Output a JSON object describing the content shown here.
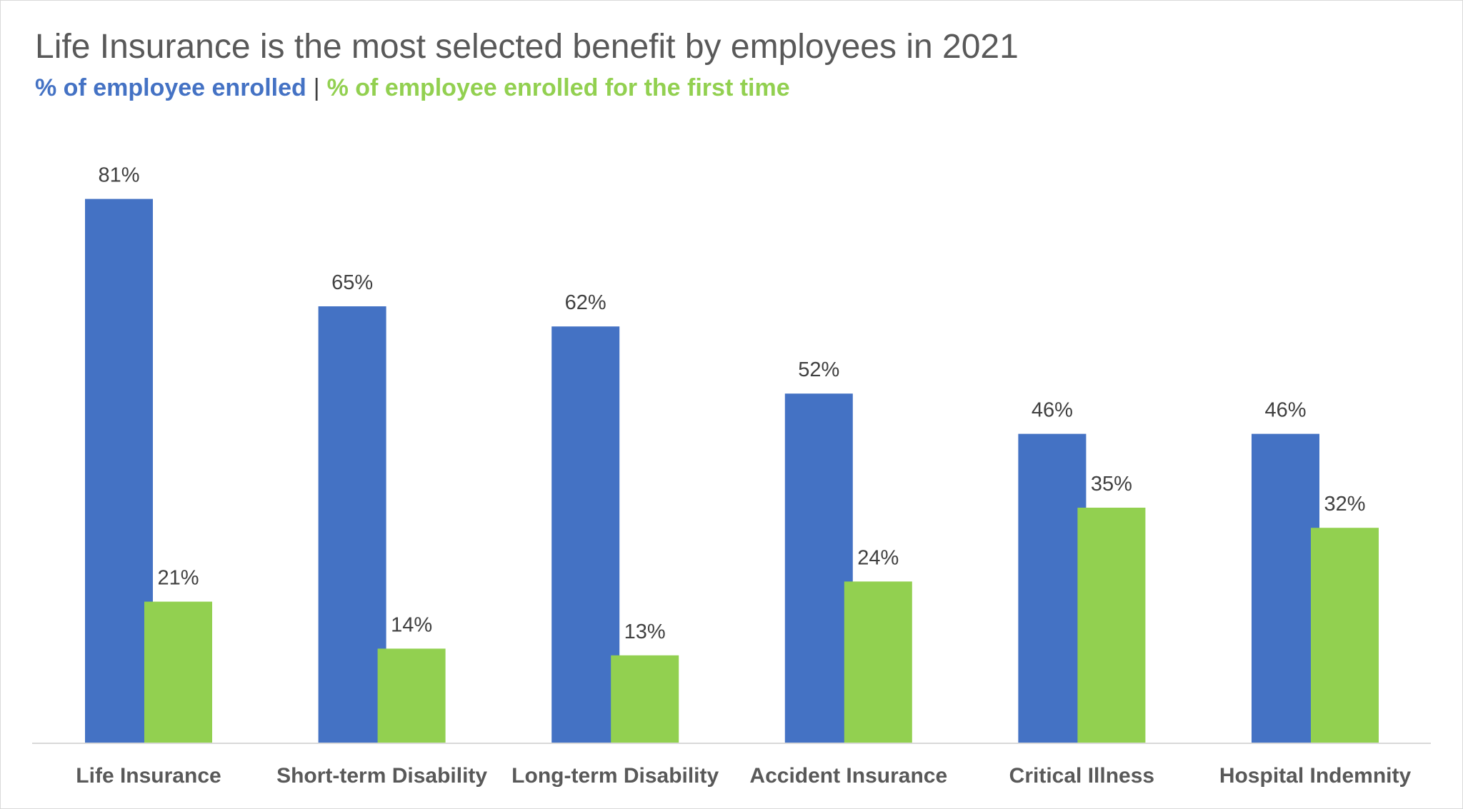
{
  "chart_data": {
    "type": "bar",
    "title": "Life Insurance is the most selected benefit by employees in 2021",
    "subtitle_parts": [
      "% of employee enrolled",
      "|",
      "% of employee enrolled for the first time"
    ],
    "categories": [
      "Life Insurance",
      "Short-term Disability",
      "Long-term Disability",
      "Accident Insurance",
      "Critical Illness",
      "Hospital Indemnity"
    ],
    "series": [
      {
        "name": "% of employee enrolled",
        "color": "#4472C4",
        "values": [
          81,
          65,
          62,
          52,
          46,
          46
        ],
        "labels": [
          "81%",
          "65%",
          "62%",
          "52%",
          "46%",
          "46%"
        ]
      },
      {
        "name": "% of employee enrolled for the first time",
        "color": "#92D050",
        "values": [
          21,
          14,
          13,
          24,
          35,
          32
        ],
        "labels": [
          "21%",
          "14%",
          "13%",
          "24%",
          "35%",
          "32%"
        ]
      }
    ],
    "ylim": [
      0,
      100
    ],
    "grid": false,
    "axis_color": "#d9d9d9"
  }
}
